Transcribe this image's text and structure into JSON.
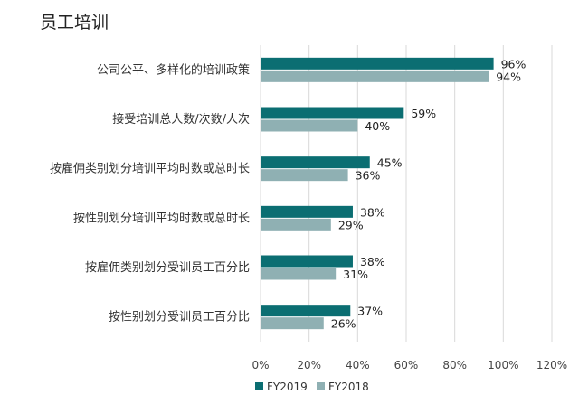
{
  "header": {
    "title": "员工培训"
  },
  "chart_data": {
    "type": "bar",
    "orientation": "horizontal",
    "title": "员工培训",
    "categories": [
      "公司公平、多样化的培训政策",
      "接受培训总人数/次数/人次",
      "按雇佣类别划分培训平均时数或总时长",
      "按性别划分培训平均时数或总时长",
      "按雇佣类别划分受训员工百分比",
      "按性别划分受训员工百分比"
    ],
    "series": [
      {
        "name": "FY2019",
        "values": [
          96,
          59,
          45,
          38,
          38,
          37
        ],
        "labels": [
          "96%",
          "59%",
          "45%",
          "38%",
          "38%",
          "37%"
        ],
        "color": "#0b6e72"
      },
      {
        "name": "FY2018",
        "values": [
          94,
          40,
          36,
          29,
          31,
          26
        ],
        "labels": [
          "94%",
          "40%",
          "36%",
          "29%",
          "31%",
          "26%"
        ],
        "color": "#8fb0b3"
      }
    ],
    "xlim": [
      0,
      120
    ],
    "xticks": [
      "0%",
      "20%",
      "40%",
      "60%",
      "80%",
      "100%",
      "120%"
    ],
    "grid": true,
    "legend": "bottom"
  }
}
